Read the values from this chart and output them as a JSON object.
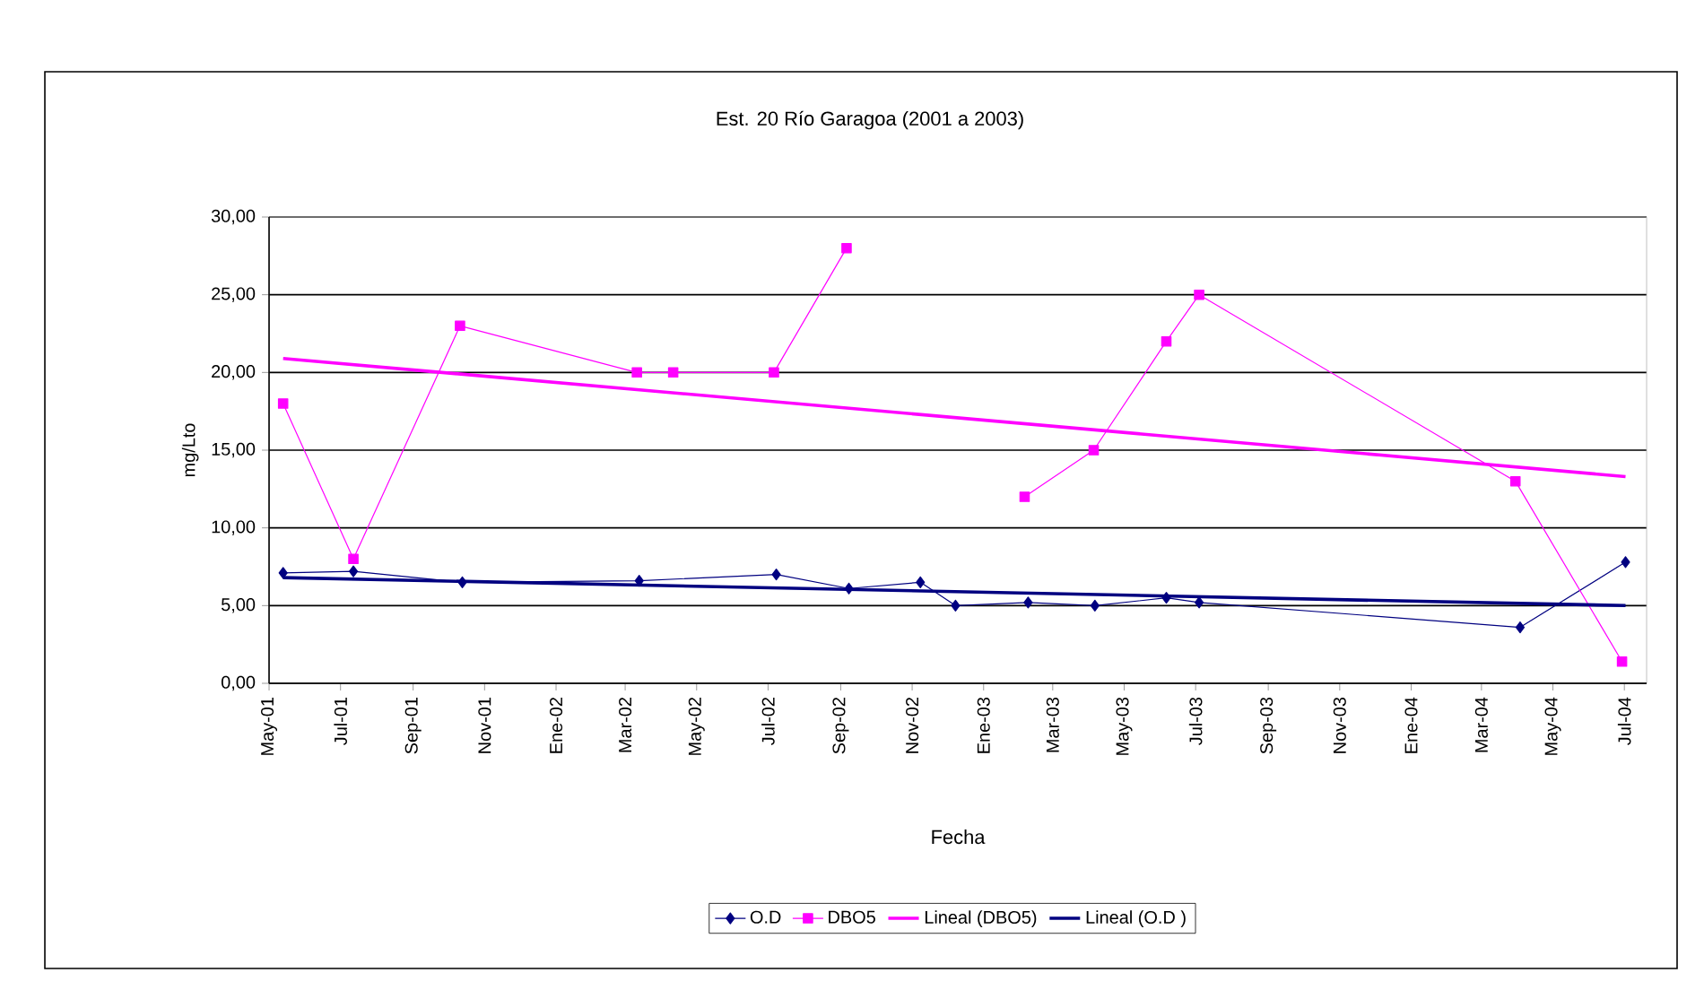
{
  "chart_data": {
    "type": "line",
    "title": "Est. 20 Río Garagoa (2001 a 2003)",
    "xlabel": "Fecha",
    "ylabel": "mg/Lto",
    "series": [
      {
        "name": "O.D",
        "color": "#000080",
        "marker": "diamond",
        "x": [
          "2001-05-13",
          "2001-07-12",
          "2001-10-13",
          "2002-03-13",
          "2002-07-08",
          "2002-09-08",
          "2002-11-08",
          "2002-12-08",
          "2003-02-08",
          "2003-04-06",
          "2003-06-06",
          "2003-07-04",
          "2004-04-03",
          "2004-07-02"
        ],
        "values": [
          7.1,
          7.2,
          6.5,
          6.6,
          7.0,
          6.1,
          6.5,
          5.0,
          5.2,
          5.0,
          5.5,
          5.2,
          3.6,
          7.8
        ]
      },
      {
        "name": "DBO5",
        "color": "#ff00ff",
        "marker": "square",
        "x": [
          "2001-05-13",
          "2001-07-12",
          "2001-10-11",
          "2002-03-11",
          "2002-04-11",
          "2002-07-06",
          "2002-09-06",
          "2002-12-01",
          "2003-02-05",
          "2003-04-05",
          "2003-06-06",
          "2003-07-04",
          "2004-03-30",
          "2004-06-29"
        ],
        "values": [
          18,
          8,
          23,
          20,
          20,
          20,
          28,
          null,
          12,
          15,
          22,
          25,
          13,
          1.4
        ]
      },
      {
        "name": "Lineal (DBO5)",
        "color": "#ff00ff",
        "marker": "none",
        "x": [
          "2001-05-13",
          "2004-07-02"
        ],
        "values": [
          20.9,
          13.3
        ]
      },
      {
        "name": "Lineal (O.D )",
        "color": "#000080",
        "marker": "none",
        "x": [
          "2001-05-13",
          "2004-07-02"
        ],
        "values": [
          6.8,
          5.0
        ]
      }
    ],
    "xlim": [
      "2001-05-01",
      "2004-07-20"
    ],
    "xticks": [
      {
        "value": "2001-05",
        "label": "May-01"
      },
      {
        "value": "2001-07",
        "label": "Jul-01"
      },
      {
        "value": "2001-09",
        "label": "Sep-01"
      },
      {
        "value": "2001-11",
        "label": "Nov-01"
      },
      {
        "value": "2002-01",
        "label": "Ene-02"
      },
      {
        "value": "2002-03",
        "label": "Mar-02"
      },
      {
        "value": "2002-05",
        "label": "May-02"
      },
      {
        "value": "2002-07",
        "label": "Jul-02"
      },
      {
        "value": "2002-09",
        "label": "Sep-02"
      },
      {
        "value": "2002-11",
        "label": "Nov-02"
      },
      {
        "value": "2003-01",
        "label": "Ene-03"
      },
      {
        "value": "2003-03",
        "label": "Mar-03"
      },
      {
        "value": "2003-05",
        "label": "May-03"
      },
      {
        "value": "2003-07",
        "label": "Jul-03"
      },
      {
        "value": "2003-09",
        "label": "Sep-03"
      },
      {
        "value": "2003-11",
        "label": "Nov-03"
      },
      {
        "value": "2004-01",
        "label": "Ene-04"
      },
      {
        "value": "2004-03",
        "label": "Mar-04"
      },
      {
        "value": "2004-05",
        "label": "May-04"
      },
      {
        "value": "2004-07",
        "label": "Jul-04"
      }
    ],
    "ylim": [
      0,
      30
    ],
    "yticks": [
      {
        "value": 0,
        "label": "0,00"
      },
      {
        "value": 5,
        "label": "5,00"
      },
      {
        "value": 10,
        "label": "10,00"
      },
      {
        "value": 15,
        "label": "15,00"
      },
      {
        "value": 20,
        "label": "20,00"
      },
      {
        "value": 25,
        "label": "25,00"
      },
      {
        "value": 30,
        "label": "30,00"
      }
    ],
    "grid": "y",
    "legend": "bottom",
    "line_style": "solid"
  }
}
